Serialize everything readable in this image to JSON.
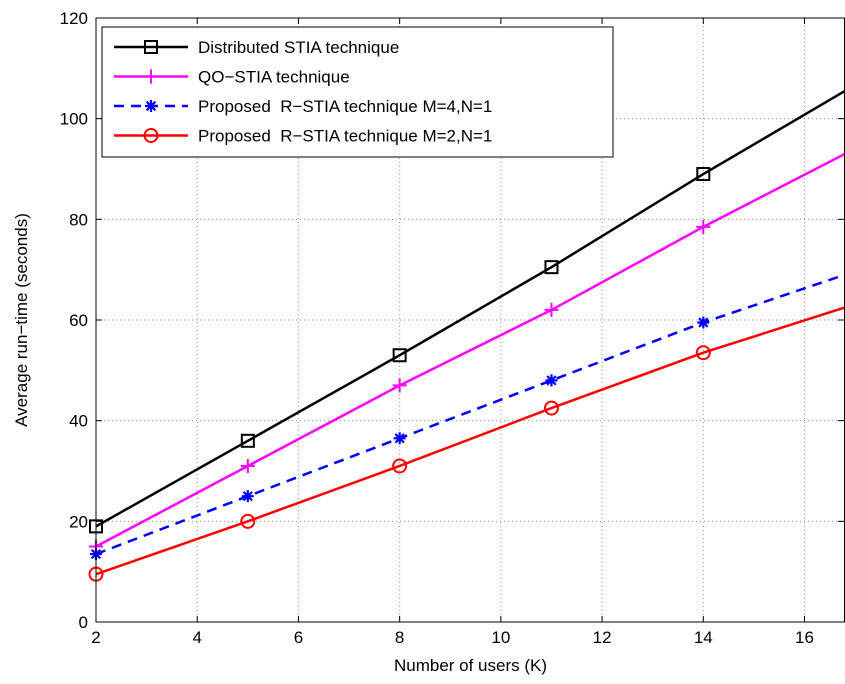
{
  "chart_data": {
    "type": "line",
    "xlabel": "Number of users (K)",
    "ylabel": "Average run−time (seconds)",
    "xlim": [
      2,
      16.8
    ],
    "ylim": [
      0,
      120
    ],
    "xticks": [
      2,
      4,
      6,
      8,
      10,
      12,
      14,
      16
    ],
    "yticks": [
      0,
      20,
      40,
      60,
      80,
      100,
      120
    ],
    "grid": true,
    "legend_position": "top-left",
    "series": [
      {
        "name": "Distributed STIA technique",
        "color": "#000000",
        "line_style": "solid",
        "marker": "square",
        "x": [
          2,
          5,
          8,
          11,
          14,
          16.8
        ],
        "y": [
          19,
          36,
          53,
          70.5,
          89,
          105.5
        ],
        "marker_x": [
          2,
          5,
          8,
          11,
          14
        ]
      },
      {
        "name": "QO−STIA technique",
        "color": "#ff00ff",
        "line_style": "solid",
        "marker": "plus",
        "x": [
          2,
          5,
          8,
          11,
          14,
          16.8
        ],
        "y": [
          15,
          31,
          47,
          62,
          78.5,
          93
        ],
        "marker_x": [
          2,
          5,
          8,
          11,
          14
        ]
      },
      {
        "name": "Proposed  R−STIA technique M=4,N=1",
        "color": "#0000ff",
        "line_style": "dashed",
        "marker": "asterisk",
        "x": [
          2,
          5,
          8,
          11,
          14,
          16.8
        ],
        "y": [
          13.5,
          25,
          36.5,
          48,
          59.5,
          69
        ],
        "marker_x": [
          2,
          5,
          8,
          11,
          14
        ]
      },
      {
        "name": "Proposed  R−STIA technique M=2,N=1",
        "color": "#ff0000",
        "line_style": "solid",
        "marker": "circle",
        "x": [
          2,
          5,
          8,
          11,
          14,
          16.8
        ],
        "y": [
          9.5,
          20,
          31,
          42.5,
          53.5,
          62.5
        ],
        "marker_x": [
          2,
          5,
          8,
          11,
          14
        ]
      }
    ]
  }
}
